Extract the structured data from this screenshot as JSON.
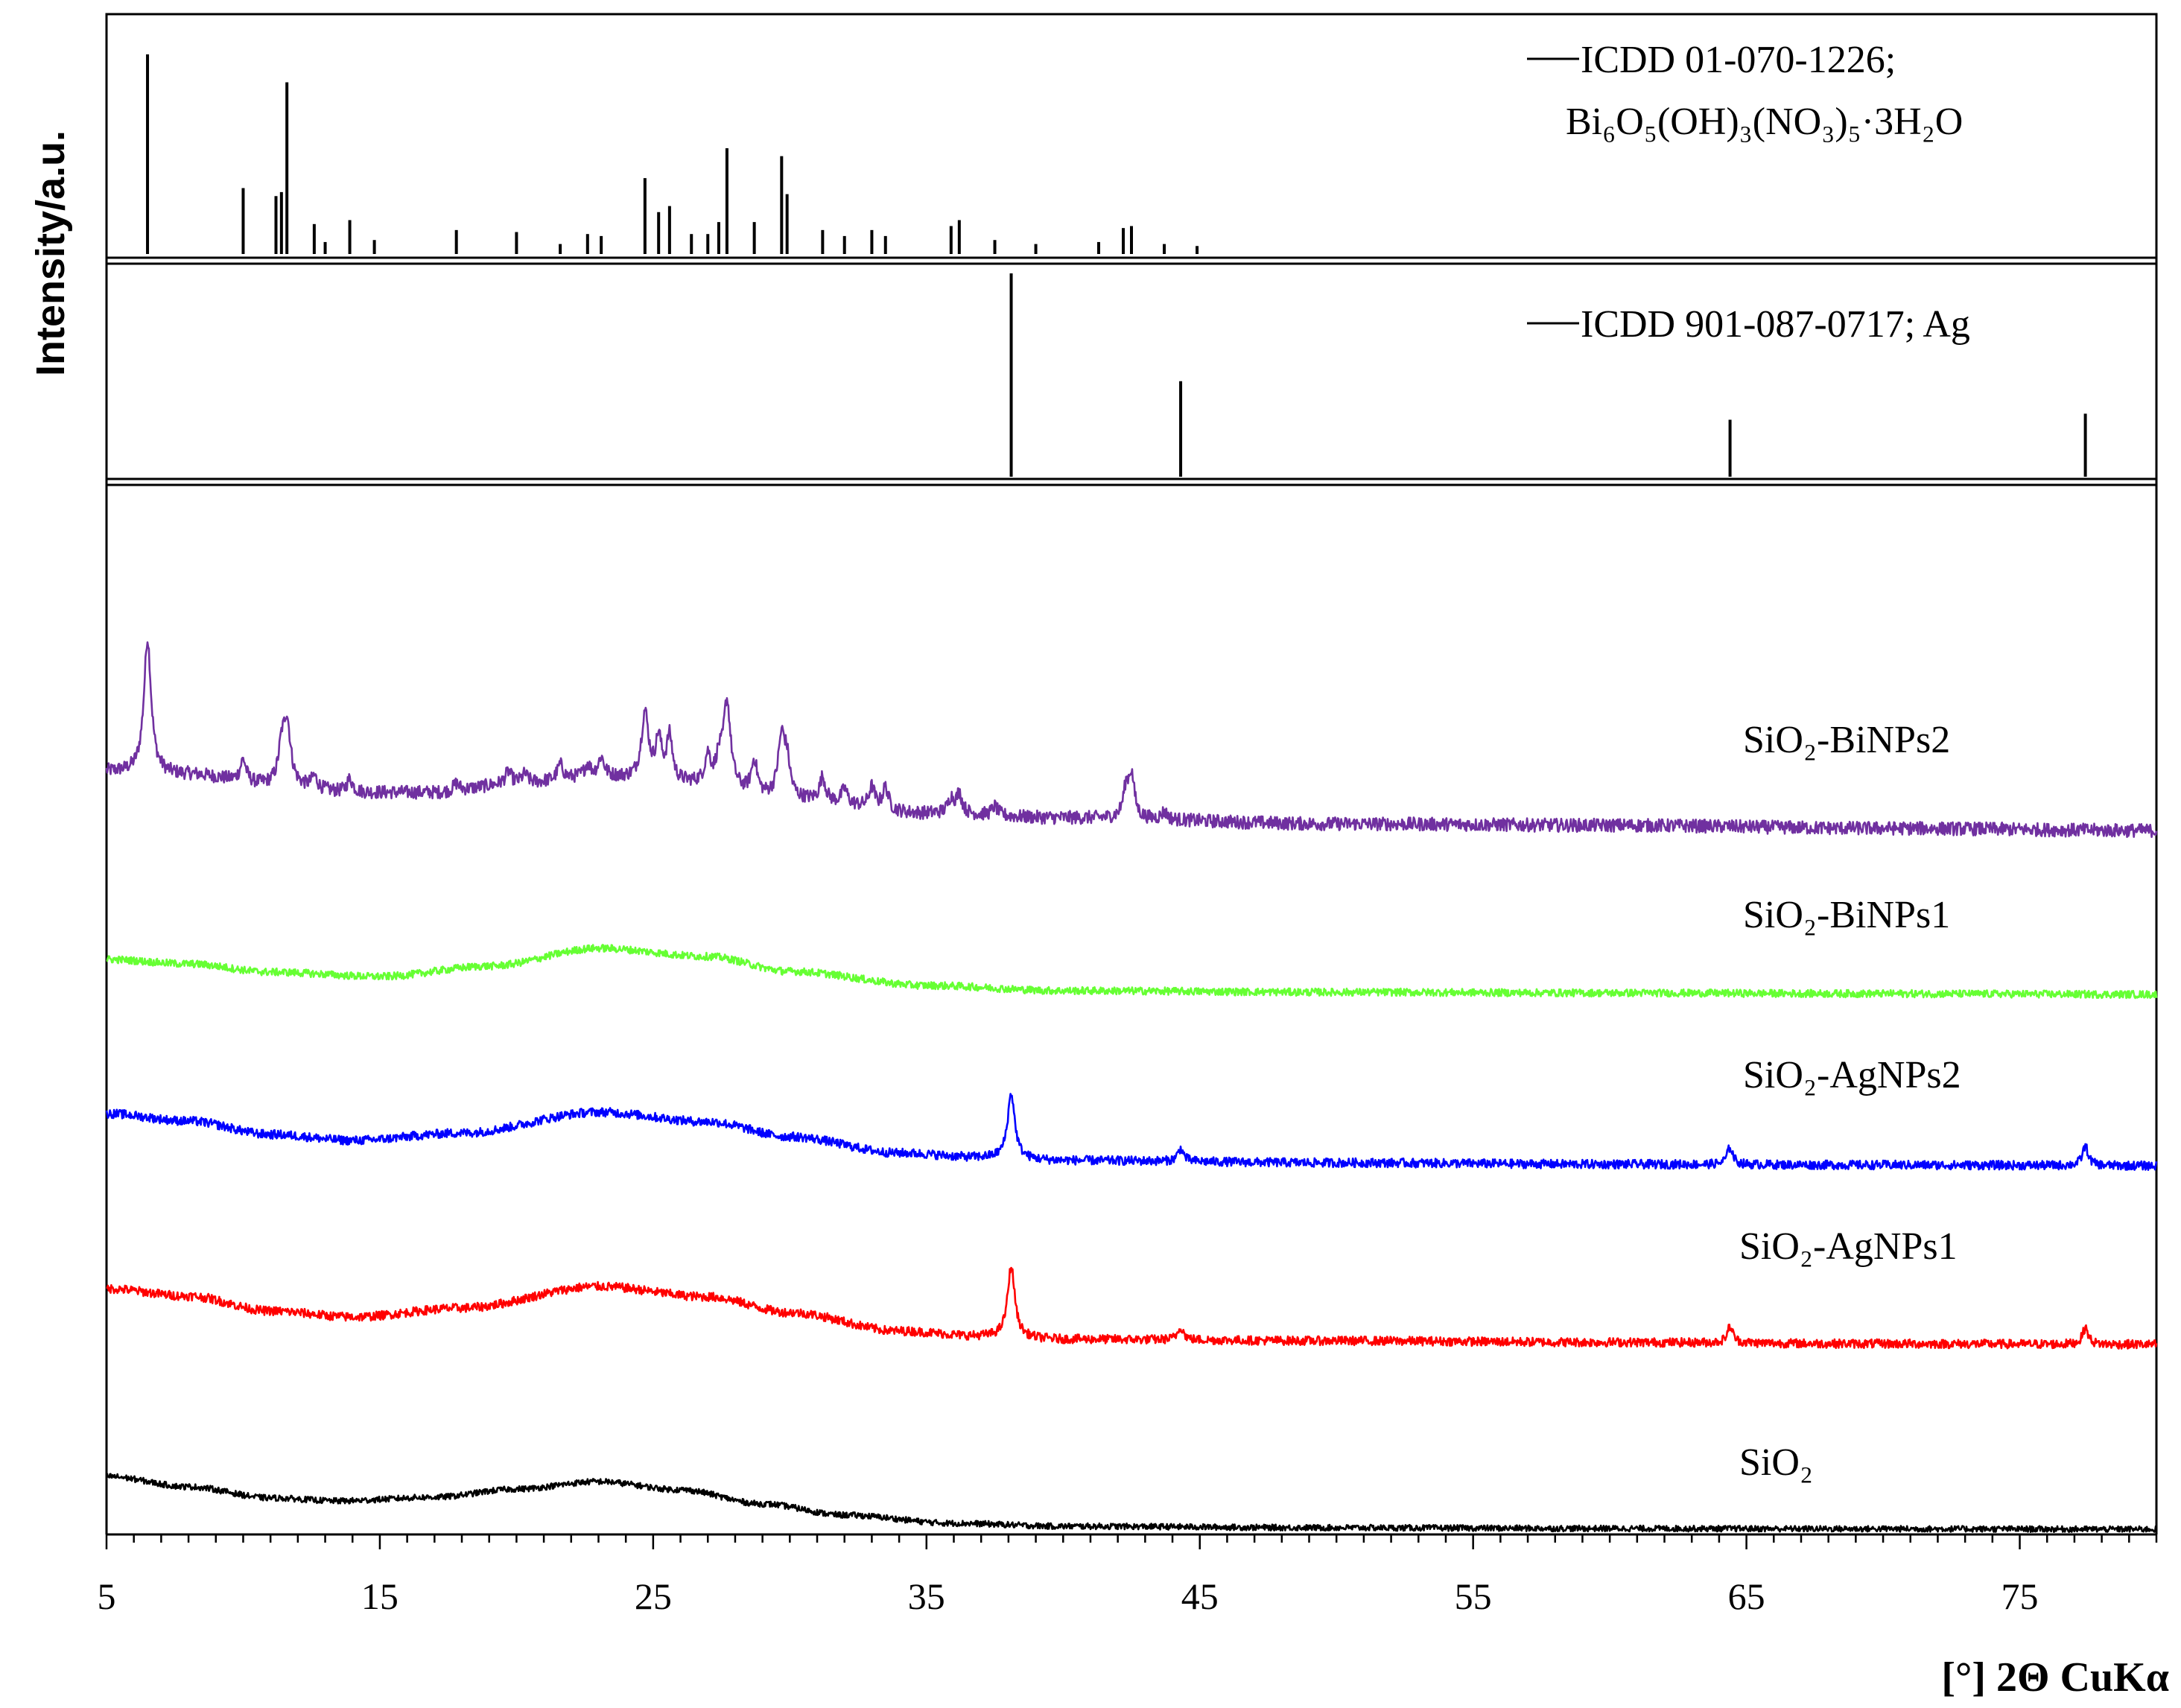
{
  "chart_data": {
    "type": "line",
    "ylabel": "Intensity/a.u.",
    "xlabel": "[°] 2Θ CuKα",
    "xlim": [
      5,
      80
    ],
    "xticks": [
      "5",
      "15",
      "25",
      "35",
      "45",
      "55",
      "65",
      "75"
    ],
    "grid": false,
    "reference_panels": [
      {
        "legend_line1": "ICDD 01-070-1226;",
        "legend_line2": "Bi₆O₅(OH)₃(NO₃)₅·3H₂O",
        "color": "#000000",
        "peaks": [
          {
            "x": 6.5,
            "rel": 100
          },
          {
            "x": 10.0,
            "rel": 33
          },
          {
            "x": 11.2,
            "rel": 29
          },
          {
            "x": 11.4,
            "rel": 31
          },
          {
            "x": 11.6,
            "rel": 86
          },
          {
            "x": 12.6,
            "rel": 15
          },
          {
            "x": 13.0,
            "rel": 6
          },
          {
            "x": 13.9,
            "rel": 17
          },
          {
            "x": 14.8,
            "rel": 7
          },
          {
            "x": 17.8,
            "rel": 12
          },
          {
            "x": 20.0,
            "rel": 11
          },
          {
            "x": 21.6,
            "rel": 5
          },
          {
            "x": 22.6,
            "rel": 10
          },
          {
            "x": 23.1,
            "rel": 9
          },
          {
            "x": 24.7,
            "rel": 38
          },
          {
            "x": 25.2,
            "rel": 21
          },
          {
            "x": 25.6,
            "rel": 24
          },
          {
            "x": 26.4,
            "rel": 10
          },
          {
            "x": 27.0,
            "rel": 10
          },
          {
            "x": 27.4,
            "rel": 16
          },
          {
            "x": 27.7,
            "rel": 53
          },
          {
            "x": 28.7,
            "rel": 16
          },
          {
            "x": 29.7,
            "rel": 49
          },
          {
            "x": 29.9,
            "rel": 30
          },
          {
            "x": 31.2,
            "rel": 12
          },
          {
            "x": 32.0,
            "rel": 9
          },
          {
            "x": 33.0,
            "rel": 12
          },
          {
            "x": 33.5,
            "rel": 9
          },
          {
            "x": 35.9,
            "rel": 14
          },
          {
            "x": 36.2,
            "rel": 17
          },
          {
            "x": 37.5,
            "rel": 7
          },
          {
            "x": 39.0,
            "rel": 5
          },
          {
            "x": 41.3,
            "rel": 6
          },
          {
            "x": 42.2,
            "rel": 13
          },
          {
            "x": 42.5,
            "rel": 14
          },
          {
            "x": 43.7,
            "rel": 5
          },
          {
            "x": 44.9,
            "rel": 4
          }
        ]
      },
      {
        "legend_line1": "ICDD 901-087-0717; Ag",
        "legend_line2": "",
        "color": "#000000",
        "peaks": [
          {
            "x": 38.1,
            "rel": 100
          },
          {
            "x": 44.3,
            "rel": 47
          },
          {
            "x": 64.4,
            "rel": 28
          },
          {
            "x": 77.4,
            "rel": 31
          }
        ]
      }
    ],
    "series": [
      {
        "name": "SiO₂-BiNPs2",
        "color": "#7030a0",
        "profile": [
          [
            5,
            82
          ],
          [
            8,
            78
          ],
          [
            11,
            64
          ],
          [
            14,
            54
          ],
          [
            17,
            54
          ],
          [
            20,
            66
          ],
          [
            23,
            75
          ],
          [
            26,
            66
          ],
          [
            30,
            44
          ],
          [
            35,
            26
          ],
          [
            40,
            20
          ],
          [
            50,
            12
          ],
          [
            60,
            10
          ],
          [
            70,
            6
          ],
          [
            80,
            3
          ]
        ],
        "peaks": [
          [
            6.5,
            180
          ],
          [
            10.0,
            30
          ],
          [
            11.4,
            40
          ],
          [
            11.6,
            85
          ],
          [
            12.6,
            16
          ],
          [
            13.9,
            18
          ],
          [
            17.8,
            10
          ],
          [
            19.7,
            16
          ],
          [
            20.3,
            12
          ],
          [
            21.6,
            20
          ],
          [
            22.6,
            16
          ],
          [
            23.1,
            25
          ],
          [
            24.7,
            90
          ],
          [
            25.2,
            55
          ],
          [
            25.6,
            60
          ],
          [
            27.0,
            38
          ],
          [
            27.4,
            30
          ],
          [
            27.7,
            115
          ],
          [
            28.7,
            45
          ],
          [
            29.7,
            80
          ],
          [
            29.9,
            40
          ],
          [
            31.2,
            32
          ],
          [
            32.0,
            20
          ],
          [
            33.0,
            28
          ],
          [
            33.5,
            30
          ],
          [
            35.9,
            20
          ],
          [
            36.2,
            26
          ],
          [
            37.5,
            12
          ],
          [
            42.3,
            35
          ],
          [
            42.5,
            55
          ],
          [
            43.7,
            10
          ]
        ],
        "noise": 9
      },
      {
        "name": "SiO₂-BiNPs1",
        "color": "#66ff33",
        "profile": [
          [
            5,
            47
          ],
          [
            8,
            41
          ],
          [
            11,
            30
          ],
          [
            15,
            24
          ],
          [
            19,
            38
          ],
          [
            23,
            62
          ],
          [
            27,
            51
          ],
          [
            30,
            31
          ],
          [
            35,
            12
          ],
          [
            40,
            5
          ],
          [
            50,
            3
          ],
          [
            60,
            2
          ],
          [
            70,
            1
          ],
          [
            80,
            0
          ]
        ],
        "peaks": [],
        "noise": 5
      },
      {
        "name": "SiO₂-AgNPs2",
        "color": "#0000ff",
        "profile": [
          [
            5,
            70
          ],
          [
            8,
            60
          ],
          [
            11,
            42
          ],
          [
            14,
            34
          ],
          [
            18,
            44
          ],
          [
            23,
            72
          ],
          [
            27,
            59
          ],
          [
            30,
            39
          ],
          [
            34,
            17
          ],
          [
            37,
            11
          ],
          [
            40,
            7
          ],
          [
            50,
            4
          ],
          [
            60,
            2
          ],
          [
            70,
            1
          ],
          [
            80,
            0
          ]
        ],
        "peaks": [
          [
            38.1,
            87
          ],
          [
            44.3,
            17
          ],
          [
            64.4,
            23
          ],
          [
            77.4,
            26
          ]
        ],
        "noise": 6
      },
      {
        "name": "SiO₂-AgNPs1",
        "color": "#ff0000",
        "profile": [
          [
            5,
            75
          ],
          [
            8,
            65
          ],
          [
            11,
            45
          ],
          [
            14,
            37
          ],
          [
            18,
            49
          ],
          [
            23,
            78
          ],
          [
            27,
            64
          ],
          [
            30,
            43
          ],
          [
            34,
            18
          ],
          [
            37,
            11
          ],
          [
            40,
            7
          ],
          [
            50,
            5
          ],
          [
            60,
            3
          ],
          [
            70,
            1
          ],
          [
            80,
            0
          ]
        ],
        "peaks": [
          [
            38.1,
            95
          ],
          [
            44.3,
            17
          ],
          [
            64.4,
            22
          ],
          [
            77.4,
            22
          ]
        ],
        "noise": 6
      },
      {
        "name": "SiO₂",
        "color": "#000000",
        "profile": [
          [
            5,
            71
          ],
          [
            8,
            57
          ],
          [
            11,
            42
          ],
          [
            13.5,
            38
          ],
          [
            17,
            43
          ],
          [
            20,
            54
          ],
          [
            23,
            64
          ],
          [
            26,
            53
          ],
          [
            29,
            34
          ],
          [
            32,
            19
          ],
          [
            36,
            8
          ],
          [
            40,
            4
          ],
          [
            50,
            2
          ],
          [
            60,
            1
          ],
          [
            70,
            0.5
          ],
          [
            80,
            0
          ]
        ],
        "peaks": [],
        "noise": 4
      }
    ]
  }
}
